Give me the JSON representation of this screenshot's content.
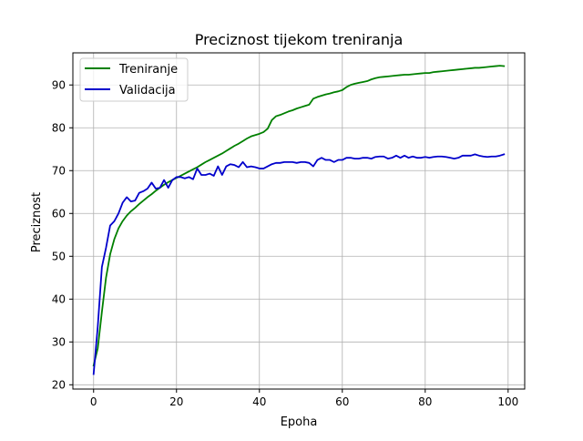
{
  "chart_data": {
    "type": "line",
    "title": "Preciznost tijekom treniranja",
    "xlabel": "Epoha",
    "ylabel": "Preciznost",
    "xlim": [
      -5,
      104
    ],
    "ylim": [
      19,
      97.5
    ],
    "x_ticks": [
      0,
      20,
      40,
      60,
      80,
      100
    ],
    "y_ticks": [
      20,
      30,
      40,
      50,
      60,
      70,
      80,
      90
    ],
    "grid": true,
    "legend_position": "top-left",
    "x": [
      0,
      1,
      2,
      3,
      4,
      5,
      6,
      7,
      8,
      9,
      10,
      11,
      12,
      13,
      14,
      15,
      16,
      17,
      18,
      19,
      20,
      21,
      22,
      23,
      24,
      25,
      26,
      27,
      28,
      29,
      30,
      31,
      32,
      33,
      34,
      35,
      36,
      37,
      38,
      39,
      40,
      41,
      42,
      43,
      44,
      45,
      46,
      47,
      48,
      49,
      50,
      51,
      52,
      53,
      54,
      55,
      56,
      57,
      58,
      59,
      60,
      61,
      62,
      63,
      64,
      65,
      66,
      67,
      68,
      69,
      70,
      71,
      72,
      73,
      74,
      75,
      76,
      77,
      78,
      79,
      80,
      81,
      82,
      83,
      84,
      85,
      86,
      87,
      88,
      89,
      90,
      91,
      92,
      93,
      94,
      95,
      96,
      97,
      98,
      99
    ],
    "series": [
      {
        "name": "Treniranje",
        "color": "#008000",
        "values": [
          24.5,
          28.5,
          37.0,
          45.0,
          50.5,
          54.0,
          56.5,
          58.2,
          59.5,
          60.5,
          61.3,
          62.2,
          63.0,
          63.8,
          64.5,
          65.3,
          66.0,
          66.7,
          67.3,
          67.8,
          68.3,
          68.8,
          69.3,
          69.8,
          70.3,
          70.8,
          71.4,
          72.0,
          72.5,
          73.0,
          73.5,
          74.0,
          74.6,
          75.2,
          75.8,
          76.3,
          76.9,
          77.5,
          78.0,
          78.3,
          78.6,
          79.0,
          79.8,
          81.8,
          82.7,
          83.0,
          83.4,
          83.8,
          84.1,
          84.5,
          84.8,
          85.1,
          85.4,
          86.8,
          87.2,
          87.5,
          87.8,
          88.0,
          88.3,
          88.5,
          88.8,
          89.5,
          90.0,
          90.3,
          90.5,
          90.7,
          90.9,
          91.3,
          91.6,
          91.8,
          91.9,
          92.0,
          92.1,
          92.2,
          92.3,
          92.4,
          92.4,
          92.5,
          92.6,
          92.7,
          92.8,
          92.8,
          93.0,
          93.1,
          93.2,
          93.3,
          93.4,
          93.5,
          93.6,
          93.7,
          93.8,
          93.9,
          94.0,
          94.0,
          94.1,
          94.2,
          94.3,
          94.4,
          94.5,
          94.4
        ]
      },
      {
        "name": "Validacija",
        "color": "#0000cc",
        "values": [
          22.5,
          33.5,
          47.5,
          52.0,
          57.2,
          58.2,
          60.0,
          62.5,
          63.8,
          62.8,
          63.0,
          64.8,
          65.2,
          65.8,
          67.2,
          65.8,
          66.0,
          67.8,
          66.0,
          67.8,
          68.5,
          68.5,
          68.2,
          68.5,
          68.0,
          70.5,
          69.0,
          69.0,
          69.3,
          68.8,
          71.0,
          69.0,
          71.0,
          71.5,
          71.3,
          70.8,
          72.0,
          70.8,
          71.0,
          70.8,
          70.5,
          70.5,
          71.0,
          71.5,
          71.8,
          71.8,
          72.0,
          72.0,
          72.0,
          71.8,
          72.0,
          72.0,
          71.8,
          71.0,
          72.5,
          73.0,
          72.5,
          72.5,
          72.0,
          72.5,
          72.5,
          73.0,
          73.0,
          72.8,
          72.8,
          73.0,
          73.0,
          72.8,
          73.2,
          73.3,
          73.3,
          72.8,
          73.0,
          73.5,
          73.0,
          73.5,
          73.0,
          73.3,
          73.0,
          73.0,
          73.2,
          73.0,
          73.2,
          73.3,
          73.3,
          73.2,
          73.0,
          72.8,
          73.0,
          73.5,
          73.5,
          73.5,
          73.8,
          73.5,
          73.3,
          73.2,
          73.3,
          73.3,
          73.5,
          73.8
        ]
      }
    ]
  }
}
